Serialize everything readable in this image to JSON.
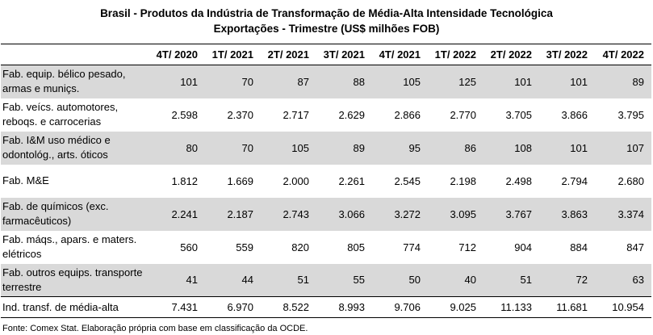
{
  "title_line1": "Brasil - Produtos da Indústria de Transformação de Média-Alta Intensidade Tecnológica",
  "title_line2": "Exportações - Trimestre (US$ milhões FOB)",
  "columns": [
    "4T/ 2020",
    "1T/ 2021",
    "2T/ 2021",
    "3T/ 2021",
    "4T/ 2021",
    "1T/ 2022",
    "2T/ 2022",
    "3T/ 2022",
    "4T/ 2022"
  ],
  "rows": [
    {
      "label": "Fab. equip. bélico pesado, armas e muniçs.",
      "values": [
        "101",
        "70",
        "87",
        "88",
        "105",
        "125",
        "101",
        "101",
        "89"
      ]
    },
    {
      "label": "Fab. veícs. automotores, reboqs. e carrocerias",
      "values": [
        "2.598",
        "2.370",
        "2.717",
        "2.629",
        "2.866",
        "2.770",
        "3.705",
        "3.866",
        "3.795"
      ]
    },
    {
      "label": "Fab. I&M uso médico e odontológ., arts. óticos",
      "values": [
        "80",
        "70",
        "105",
        "89",
        "95",
        "86",
        "108",
        "101",
        "107"
      ]
    },
    {
      "label": "Fab. M&E",
      "values": [
        "1.812",
        "1.669",
        "2.000",
        "2.261",
        "2.545",
        "2.198",
        "2.498",
        "2.794",
        "2.680"
      ]
    },
    {
      "label": "Fab. de químicos (exc. farmacêuticos)",
      "values": [
        "2.241",
        "2.187",
        "2.743",
        "3.066",
        "3.272",
        "3.095",
        "3.767",
        "3.863",
        "3.374"
      ]
    },
    {
      "label": "Fab. máqs., apars. e maters. elétricos",
      "values": [
        "560",
        "559",
        "820",
        "805",
        "774",
        "712",
        "904",
        "884",
        "847"
      ]
    },
    {
      "label": "Fab. outros equips. transporte terrestre",
      "values": [
        "41",
        "44",
        "51",
        "55",
        "50",
        "40",
        "51",
        "72",
        "63"
      ]
    }
  ],
  "total": {
    "label": "Ind. transf. de média-alta",
    "values": [
      "7.431",
      "6.970",
      "8.522",
      "8.993",
      "9.706",
      "9.025",
      "11.133",
      "11.681",
      "10.954"
    ]
  },
  "source": "Fonte: Comex Stat. Elaboração própria com base em classificação da OCDE.",
  "colors": {
    "shade": "#d9d9d9",
    "text": "#000000"
  }
}
